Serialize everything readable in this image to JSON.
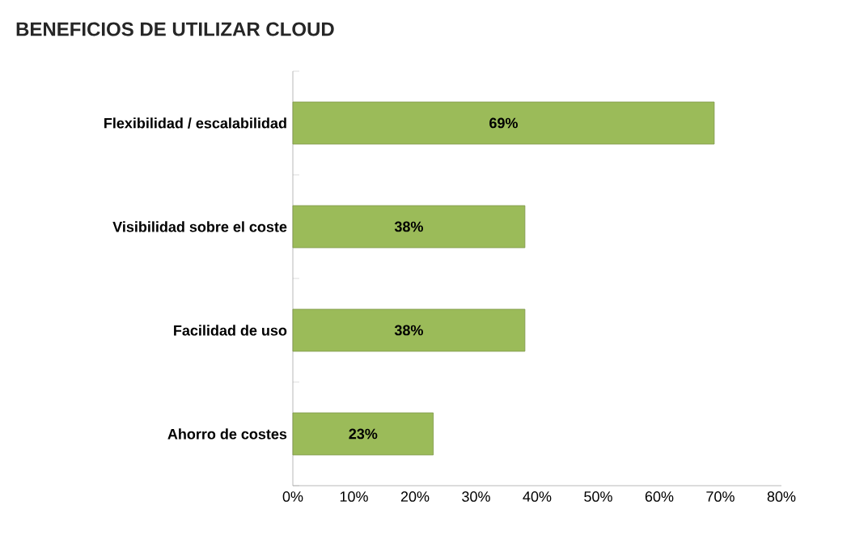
{
  "chart_data": {
    "type": "bar",
    "orientation": "horizontal",
    "title": "BENEFICIOS DE UTILIZAR CLOUD",
    "categories": [
      "Flexibilidad / escalabilidad",
      "Visibilidad sobre el coste",
      "Facilidad de uso",
      "Ahorro de costes"
    ],
    "values": [
      69,
      38,
      38,
      23
    ],
    "value_labels": [
      "69%",
      "38%",
      "38%",
      "23%"
    ],
    "color": "#9bbb59",
    "xlim": [
      0,
      80
    ],
    "xticks": [
      {
        "value": 0,
        "label": "0%"
      },
      {
        "value": 10,
        "label": "10%"
      },
      {
        "value": 20,
        "label": "20%"
      },
      {
        "value": 30,
        "label": "30%"
      },
      {
        "value": 40,
        "label": "40%"
      },
      {
        "value": 50,
        "label": "50%"
      },
      {
        "value": 60,
        "label": "60%"
      },
      {
        "value": 70,
        "label": "70%"
      },
      {
        "value": 80,
        "label": "80%"
      }
    ],
    "grid": false
  }
}
